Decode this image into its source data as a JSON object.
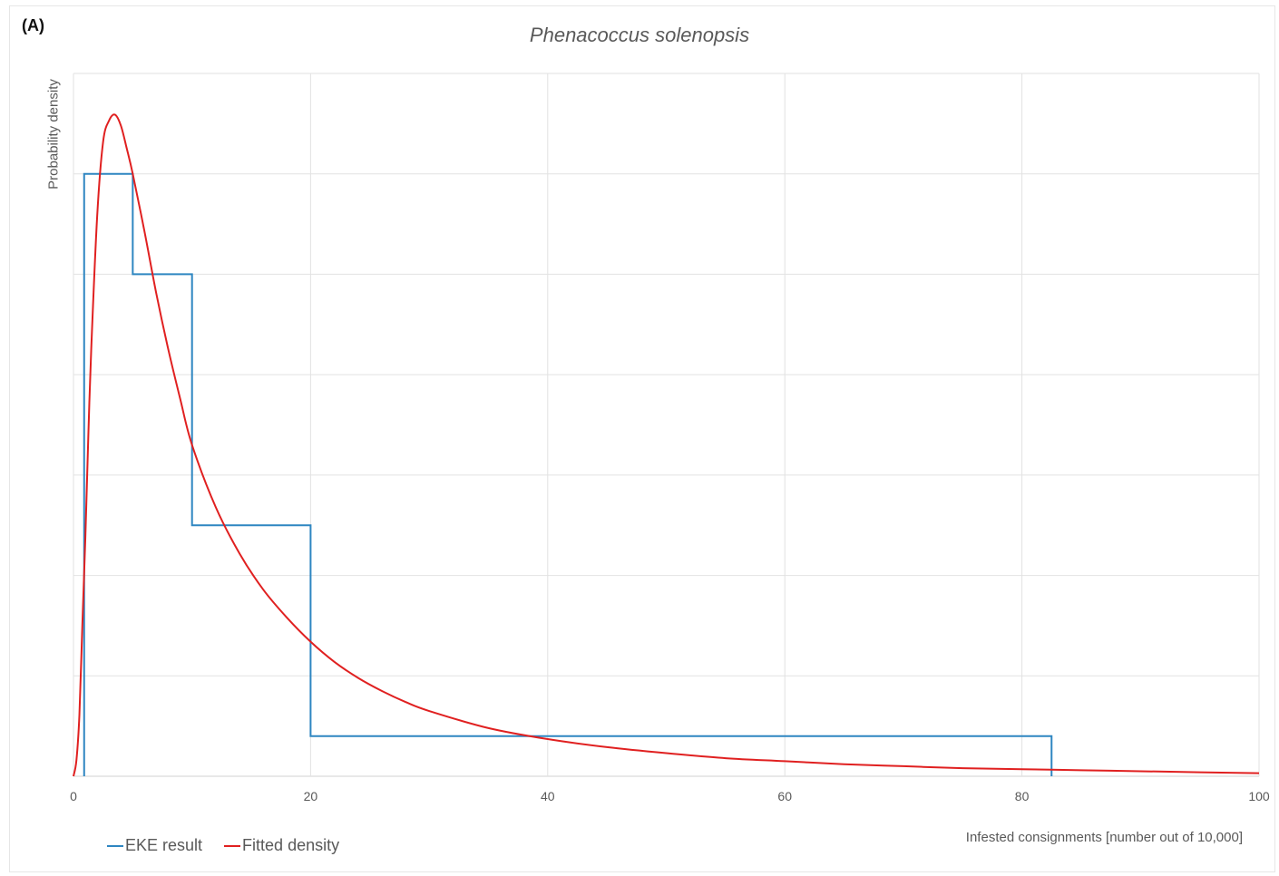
{
  "panel_label": "(A)",
  "chart_data": {
    "type": "line",
    "title": "Phenacoccus solenopsis",
    "xlabel": "Infested consignments [number out of 10,000]",
    "ylabel": "Probability density",
    "xlim": [
      0,
      100
    ],
    "ylim": [
      0,
      0.07
    ],
    "x_ticks": [
      0,
      20,
      40,
      60,
      80,
      100
    ],
    "grid": true,
    "legend_position": "bottom-left",
    "series": [
      {
        "name": "EKE result",
        "color": "#2E86C1",
        "style": "step",
        "bins": [
          {
            "x0": 0.9,
            "x1": 5,
            "density": 0.06
          },
          {
            "x0": 5,
            "x1": 10,
            "density": 0.05
          },
          {
            "x0": 10,
            "x1": 20,
            "density": 0.025
          },
          {
            "x0": 20,
            "x1": 82.5,
            "density": 0.004
          }
        ]
      },
      {
        "name": "Fitted density",
        "color": "#E02020",
        "style": "line",
        "x": [
          0,
          0.25,
          0.5,
          0.75,
          1,
          1.25,
          1.5,
          2,
          2.5,
          3,
          3.5,
          4,
          4.5,
          5,
          6,
          7,
          8,
          9,
          10,
          12,
          14,
          16,
          18,
          20,
          22,
          24,
          26,
          28,
          30,
          35,
          40,
          45,
          50,
          55,
          60,
          65,
          70,
          75,
          80,
          85,
          90,
          95,
          100
        ],
        "y": [
          0,
          0.0016,
          0.0061,
          0.0151,
          0.0237,
          0.0338,
          0.0426,
          0.0558,
          0.0632,
          0.0653,
          0.0659,
          0.0648,
          0.0625,
          0.06,
          0.0542,
          0.048,
          0.0425,
          0.0376,
          0.033,
          0.0268,
          0.0222,
          0.0186,
          0.0158,
          0.0134,
          0.0114,
          0.0098,
          0.0085,
          0.0074,
          0.0065,
          0.0048,
          0.0037,
          0.0029,
          0.0023,
          0.0018,
          0.0015,
          0.0012,
          0.001,
          0.0008,
          0.0007,
          0.0006,
          0.0005,
          0.0004,
          0.0003
        ]
      }
    ]
  }
}
